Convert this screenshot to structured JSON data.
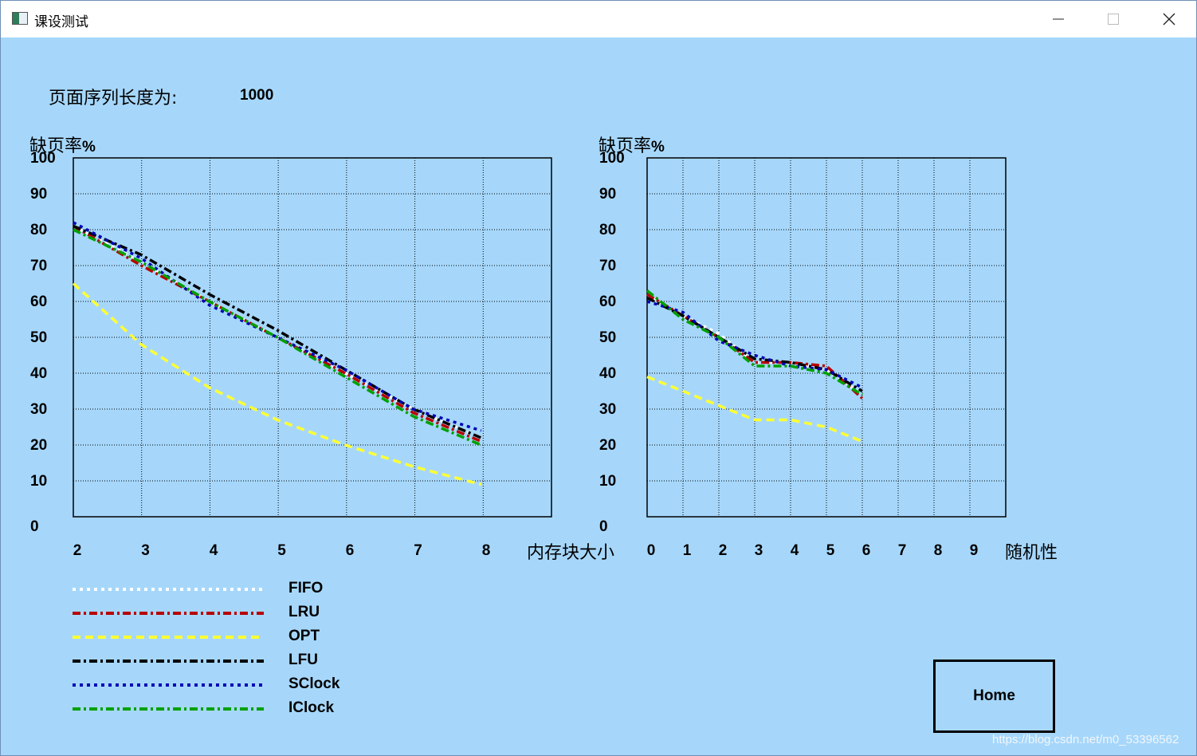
{
  "window": {
    "title": "课设测试"
  },
  "header": {
    "seq_label": "页面序列长度为:",
    "seq_value": "1000"
  },
  "chart_left": {
    "ylabel_cn": "缺页率",
    "ylabel_unit": "%",
    "xlabel": "内存块大小"
  },
  "chart_right": {
    "ylabel_cn": "缺页率",
    "ylabel_unit": "%",
    "xlabel": "随机性"
  },
  "legend": [
    {
      "name": "FIFO",
      "color": "#ffffff",
      "dash": "4,5"
    },
    {
      "name": "LRU",
      "color": "#b80000",
      "dash": "10,4,3,4"
    },
    {
      "name": "OPT",
      "color": "#ffff33",
      "dash": "10,6"
    },
    {
      "name": "LFU",
      "color": "#000000",
      "dash": "10,4,3,4"
    },
    {
      "name": "SClock",
      "color": "#0000b8",
      "dash": "4,5"
    },
    {
      "name": "IClock",
      "color": "#00a000",
      "dash": "10,4,3,4"
    }
  ],
  "home_button": "Home",
  "watermark": "https://blog.csdn.net/m0_53396562",
  "chart_data": [
    {
      "type": "line",
      "title": "",
      "ylabel": "缺页率%",
      "xlabel": "内存块大小",
      "x_ticks": [
        "2",
        "3",
        "4",
        "5",
        "6",
        "7",
        "8"
      ],
      "y_ticks": [
        "0",
        "10",
        "20",
        "30",
        "40",
        "50",
        "60",
        "70",
        "80",
        "90",
        "100"
      ],
      "ylim": [
        0,
        100
      ],
      "x": [
        2,
        3,
        4,
        5,
        6,
        7,
        8
      ],
      "grid": true,
      "series": [
        {
          "name": "FIFO",
          "values": [
            81,
            71,
            60,
            50,
            40,
            30,
            22
          ]
        },
        {
          "name": "LRU",
          "values": [
            81,
            70,
            60,
            50,
            40,
            29,
            21
          ]
        },
        {
          "name": "OPT",
          "values": [
            65,
            48,
            36,
            27,
            20,
            14,
            9
          ]
        },
        {
          "name": "LFU",
          "values": [
            81,
            73,
            62,
            52,
            41,
            30,
            22
          ]
        },
        {
          "name": "SClock",
          "values": [
            82,
            72,
            59,
            50,
            41,
            30,
            24
          ]
        },
        {
          "name": "IClock",
          "values": [
            80,
            71,
            60,
            50,
            39,
            28,
            20
          ]
        }
      ]
    },
    {
      "type": "line",
      "title": "",
      "ylabel": "缺页率%",
      "xlabel": "随机性",
      "x_ticks": [
        "0",
        "1",
        "2",
        "3",
        "4",
        "5",
        "6",
        "7",
        "8",
        "9"
      ],
      "y_ticks": [
        "0",
        "10",
        "20",
        "30",
        "40",
        "50",
        "60",
        "70",
        "80",
        "90",
        "100"
      ],
      "ylim": [
        0,
        100
      ],
      "x": [
        0,
        1,
        2,
        3,
        4,
        5,
        6
      ],
      "grid": true,
      "series": [
        {
          "name": "FIFO",
          "values": [
            62,
            56,
            51,
            43,
            43,
            41,
            34
          ]
        },
        {
          "name": "LRU",
          "values": [
            62,
            56,
            50,
            43,
            43,
            42,
            33
          ]
        },
        {
          "name": "OPT",
          "values": [
            39,
            35,
            31,
            27,
            27,
            25,
            21
          ]
        },
        {
          "name": "LFU",
          "values": [
            61,
            56,
            50,
            44,
            43,
            41,
            35
          ]
        },
        {
          "name": "SClock",
          "values": [
            60,
            57,
            49,
            45,
            42,
            41,
            36
          ]
        },
        {
          "name": "IClock",
          "values": [
            63,
            55,
            50,
            42,
            42,
            40,
            34
          ]
        }
      ]
    }
  ]
}
